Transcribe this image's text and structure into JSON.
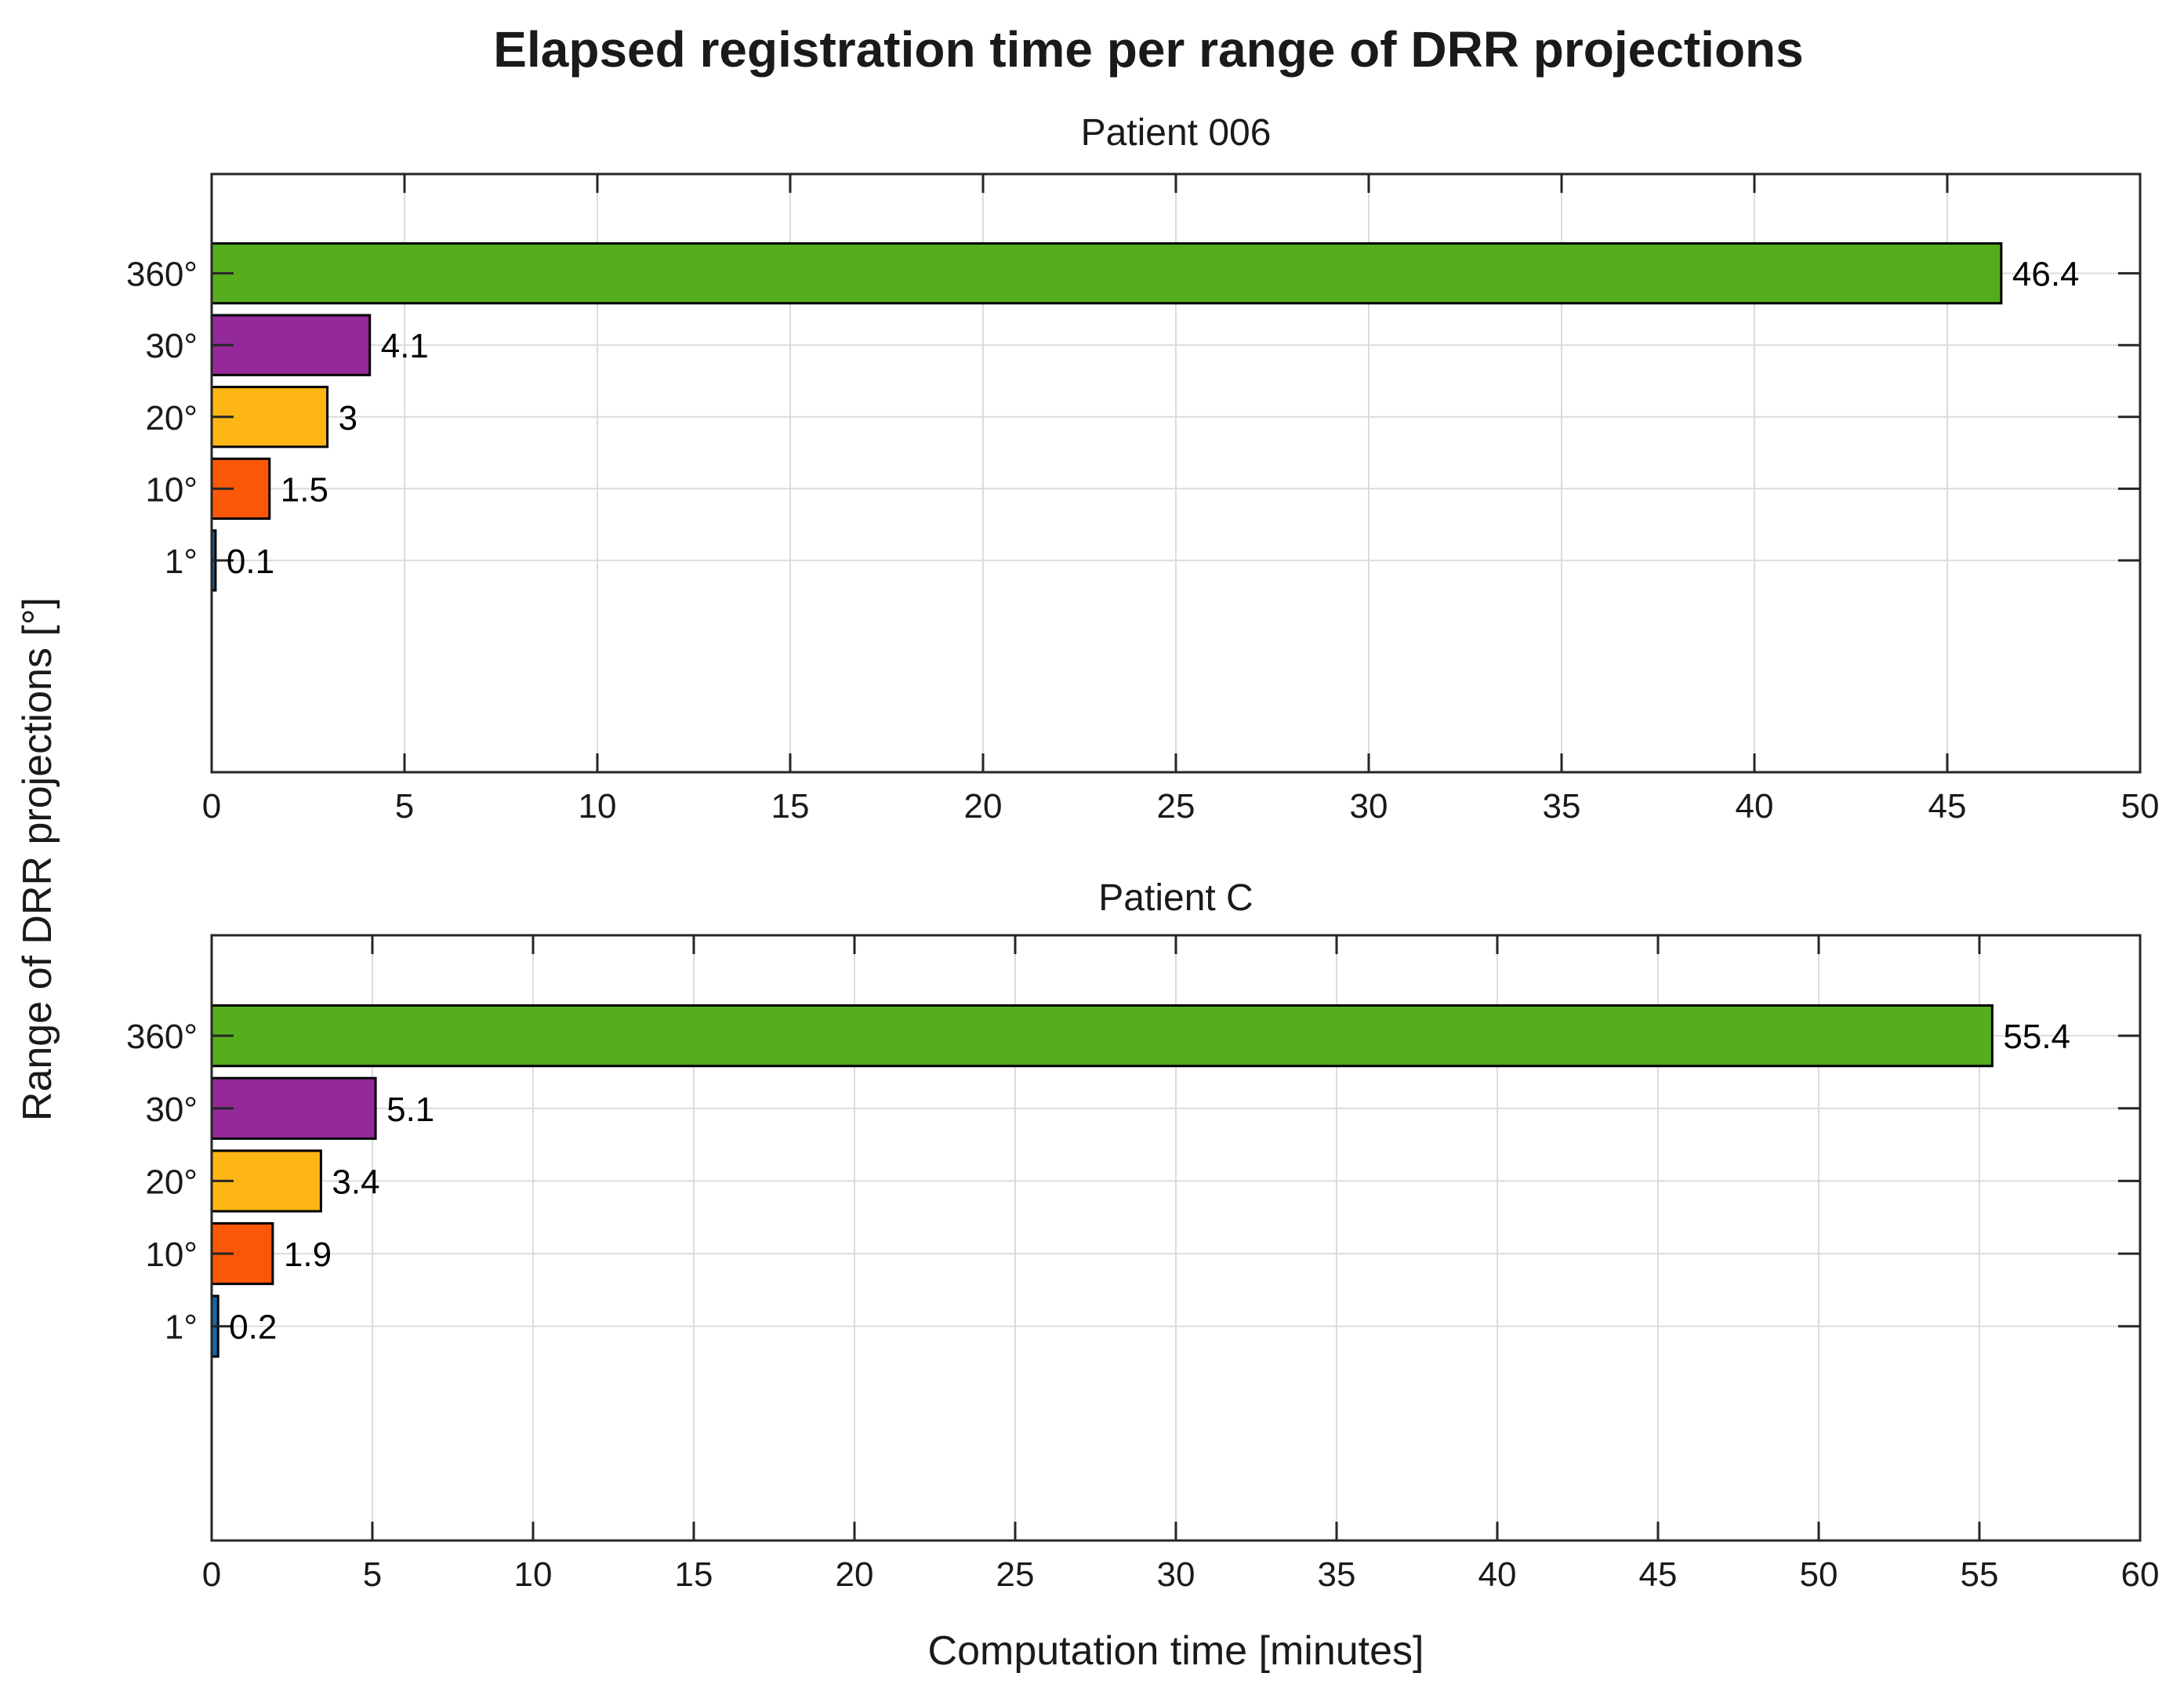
{
  "figure": {
    "title": "Elapsed registration time per range of DRR projections",
    "xlabel": "Computation time [minutes]",
    "ylabel": "Range of DRR projections [°]"
  },
  "colors": {
    "background": "#ffffff",
    "bar_fill": [
      "#55ad1d",
      "#942a99",
      "#fdb614",
      "#fb5708",
      "#1668a8"
    ],
    "bar_edge": "#000000",
    "axis": "#262626",
    "grid": "#dcdcdc",
    "tick_label": "#1a1a1a",
    "value_label": "#000000",
    "title_text": "#1a1a1a"
  },
  "chart_data": [
    {
      "type": "bar",
      "orientation": "horizontal",
      "title": "Patient 006",
      "categories": [
        "360°",
        "30°",
        "20°",
        "10°",
        "1°"
      ],
      "values": [
        46.4,
        4.1,
        3,
        1.5,
        0.1
      ],
      "value_labels": [
        "46.4",
        "4.1",
        "3",
        "1.5",
        "0.1"
      ],
      "xlim": [
        0,
        50
      ],
      "xticks": [
        0,
        5,
        10,
        15,
        20,
        25,
        30,
        35,
        40,
        45,
        50
      ],
      "grid": true,
      "legend": "none"
    },
    {
      "type": "bar",
      "orientation": "horizontal",
      "title": "Patient C",
      "categories": [
        "360°",
        "30°",
        "20°",
        "10°",
        "1°"
      ],
      "values": [
        55.4,
        5.1,
        3.4,
        1.9,
        0.2
      ],
      "value_labels": [
        "55.4",
        "5.1",
        "3.4",
        "1.9",
        "0.2"
      ],
      "xlim": [
        0,
        60
      ],
      "xticks": [
        0,
        5,
        10,
        15,
        20,
        25,
        30,
        35,
        40,
        45,
        50,
        55,
        60
      ],
      "grid": true,
      "legend": "none"
    }
  ]
}
